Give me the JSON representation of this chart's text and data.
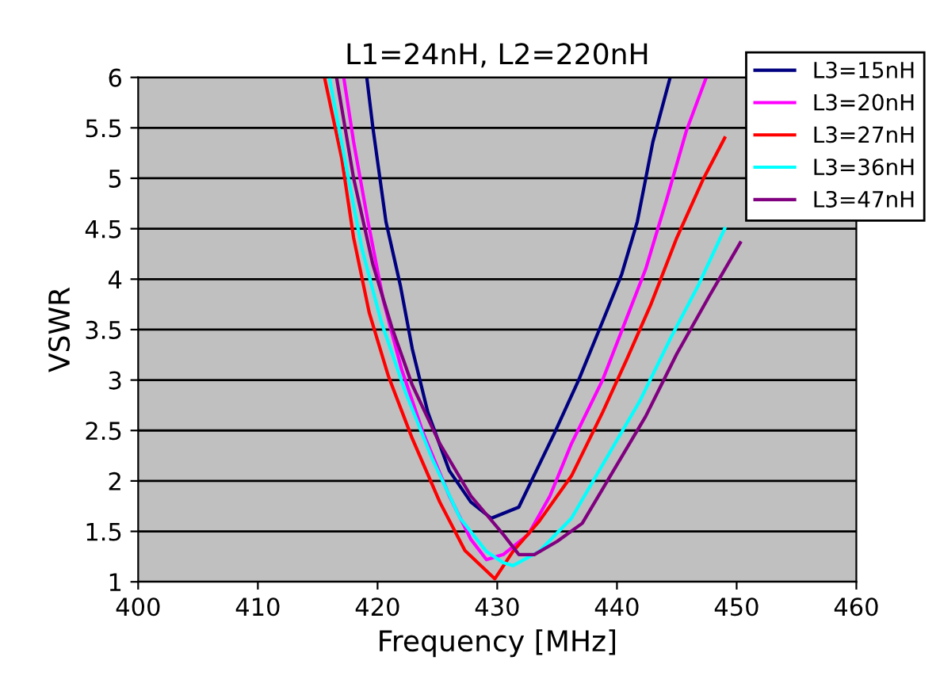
{
  "chart_data": {
    "type": "line",
    "title": "L1=24nH, L2=220nH",
    "xlabel": "Frequency [MHz]",
    "ylabel": "VSWR",
    "xlim": [
      400,
      460
    ],
    "xticks": [
      400,
      410,
      420,
      430,
      440,
      450,
      460
    ],
    "ylim": [
      1,
      6
    ],
    "yticks": [
      1,
      1.5,
      2,
      2.5,
      3,
      3.5,
      4,
      4.5,
      5,
      5.5,
      6
    ],
    "grid": "y",
    "legend": "top right",
    "marker": "none",
    "line_style": "solid",
    "series": [
      {
        "name": "L3=15nH",
        "color": "#000080",
        "x": [
          419.1,
          419.6,
          420.7,
          421.9,
          422.9,
          424.2,
          426.0,
          427.8,
          429.5,
          431.8,
          433.5,
          434.8,
          436.8,
          438.8,
          440.4,
          441.7,
          443.0,
          444.4
        ],
        "values": [
          6.0,
          5.51,
          4.57,
          3.94,
          3.31,
          2.68,
          2.1,
          1.79,
          1.63,
          1.74,
          2.16,
          2.48,
          3.0,
          3.58,
          4.05,
          4.57,
          5.36,
          5.98
        ]
      },
      {
        "name": "L3=20nH",
        "color": "#ff00ff",
        "x": [
          417.2,
          418.0,
          419.2,
          420.5,
          422.0,
          423.8,
          426.0,
          427.8,
          429.1,
          430.5,
          432.6,
          434.4,
          436.2,
          438.8,
          440.5,
          442.4,
          444.1,
          445.8,
          447.4
        ],
        "values": [
          5.98,
          5.36,
          4.57,
          3.78,
          3.11,
          2.48,
          1.85,
          1.42,
          1.22,
          1.27,
          1.47,
          1.85,
          2.37,
          3.0,
          3.52,
          4.1,
          4.77,
          5.47,
          5.98
        ]
      },
      {
        "name": "L3=27nH",
        "color": "#ff0000",
        "x": [
          415.6,
          417.0,
          418.0,
          419.3,
          420.9,
          422.9,
          425.2,
          427.3,
          429.8,
          431.3,
          433.5,
          436.2,
          438.8,
          440.8,
          442.8,
          445.0,
          447.2,
          449.0
        ],
        "values": [
          5.98,
          5.2,
          4.41,
          3.67,
          3.04,
          2.42,
          1.79,
          1.31,
          1.03,
          1.3,
          1.6,
          2.05,
          2.68,
          3.2,
          3.74,
          4.41,
          4.99,
          5.4
        ]
      },
      {
        "name": "L3=36nH",
        "color": "#00ffff",
        "x": [
          416.0,
          417.4,
          418.7,
          420.3,
          422.3,
          424.6,
          426.9,
          429.1,
          430.5,
          431.3,
          433.5,
          436.2,
          438.8,
          441.9,
          444.5,
          446.8,
          449.0
        ],
        "values": [
          5.98,
          5.1,
          4.3,
          3.58,
          2.89,
          2.21,
          1.63,
          1.3,
          1.19,
          1.16,
          1.3,
          1.63,
          2.16,
          2.79,
          3.42,
          3.94,
          4.5
        ]
      },
      {
        "name": "L3=47nH",
        "color": "#800080",
        "x": [
          416.6,
          418.0,
          419.6,
          421.2,
          422.9,
          425.2,
          427.8,
          430.5,
          431.8,
          433.1,
          435.0,
          437.1,
          439.2,
          442.4,
          445.0,
          447.7,
          450.3
        ],
        "values": [
          5.98,
          5.0,
          4.15,
          3.52,
          2.95,
          2.37,
          1.85,
          1.47,
          1.27,
          1.27,
          1.4,
          1.58,
          2.0,
          2.64,
          3.26,
          3.83,
          4.36
        ]
      }
    ]
  }
}
